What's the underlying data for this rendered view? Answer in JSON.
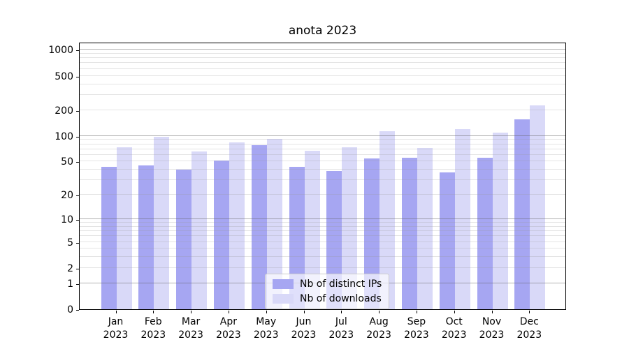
{
  "chart_data": {
    "type": "bar",
    "title": "anota 2023",
    "categories": [
      "Jan 2023",
      "Feb 2023",
      "Mar 2023",
      "Apr 2023",
      "May 2023",
      "Jun 2023",
      "Jul 2023",
      "Aug 2023",
      "Sep 2023",
      "Oct 2023",
      "Nov 2023",
      "Dec 2023"
    ],
    "series": [
      {
        "name": "Nb of distinct IPs",
        "color": "#a6a6f2",
        "values": [
          43,
          45,
          40,
          51,
          78,
          43,
          39,
          54,
          55,
          37,
          56,
          156
        ]
      },
      {
        "name": "Nb of downloads",
        "color": "#d9d9f8",
        "values": [
          73,
          97,
          66,
          84,
          93,
          67,
          73,
          113,
          72,
          121,
          109,
          228
        ]
      }
    ],
    "xlabel": "",
    "ylabel": "",
    "y_scale": "log1p",
    "ylim": [
      0,
      1233
    ],
    "yticks": [
      0,
      1,
      2,
      5,
      10,
      20,
      50,
      100,
      200,
      500,
      1000
    ],
    "grid": "both",
    "grid_major_values": [
      1,
      10,
      100,
      1000
    ],
    "legend_position": "lower center"
  },
  "colors": {
    "axis": "#000000",
    "grid_major": "rgba(100,100,100,0.50)",
    "grid_minor": "rgba(150,150,150,0.26)",
    "legend_border": "#cccccc"
  }
}
